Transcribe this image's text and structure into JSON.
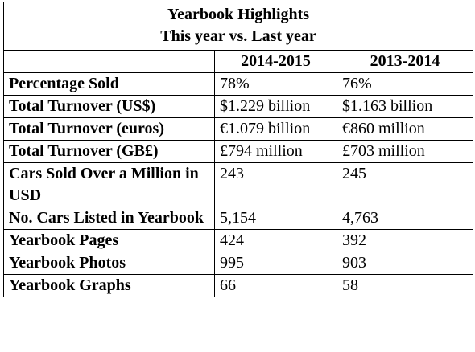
{
  "header": {
    "title": "Yearbook Highlights",
    "subtitle": "This year vs. Last year"
  },
  "table": {
    "columns": [
      "2014-2015",
      "2013-2014"
    ],
    "rows": [
      [
        "Percentage Sold",
        "78%",
        "76%"
      ],
      [
        "Total Turnover (US$)",
        "$1.229 billion",
        "$1.163 billion"
      ],
      [
        "Total Turnover (euros)",
        "€1.079 billion",
        "€860 million"
      ],
      [
        "Total Turnover (GB£)",
        "£794 million",
        "£703 million"
      ],
      [
        "Cars Sold Over a Million in USD",
        "243",
        "245"
      ],
      [
        "No. Cars Listed in Yearbook",
        "5,154",
        "4,763"
      ],
      [
        "Yearbook Pages",
        "424",
        "392"
      ],
      [
        "Yearbook Photos",
        "995",
        "903"
      ],
      [
        "Yearbook Graphs",
        "66",
        "58"
      ]
    ]
  }
}
